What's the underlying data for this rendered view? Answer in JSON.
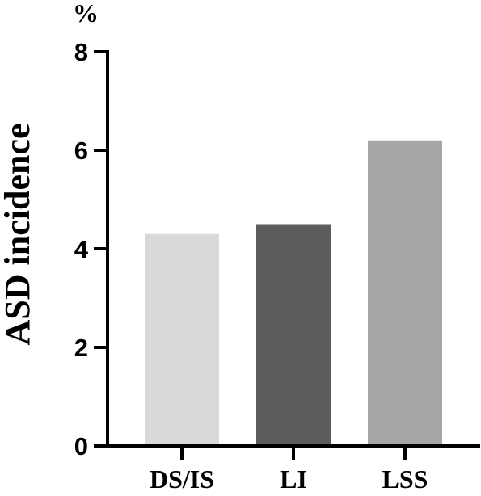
{
  "chart_data": {
    "type": "bar",
    "categories": [
      "DS/IS",
      "LI",
      "LSS"
    ],
    "values": [
      4.3,
      4.5,
      6.2
    ],
    "colors": [
      "#d9d9d9",
      "#5c5c5c",
      "#a6a6a8"
    ],
    "ylabel": "ASD incidence",
    "unit_label": "%",
    "xlabel": "",
    "ylim": [
      0,
      8
    ],
    "yticks": [
      0,
      2,
      4,
      6,
      8
    ],
    "grid": false,
    "legend": false
  }
}
